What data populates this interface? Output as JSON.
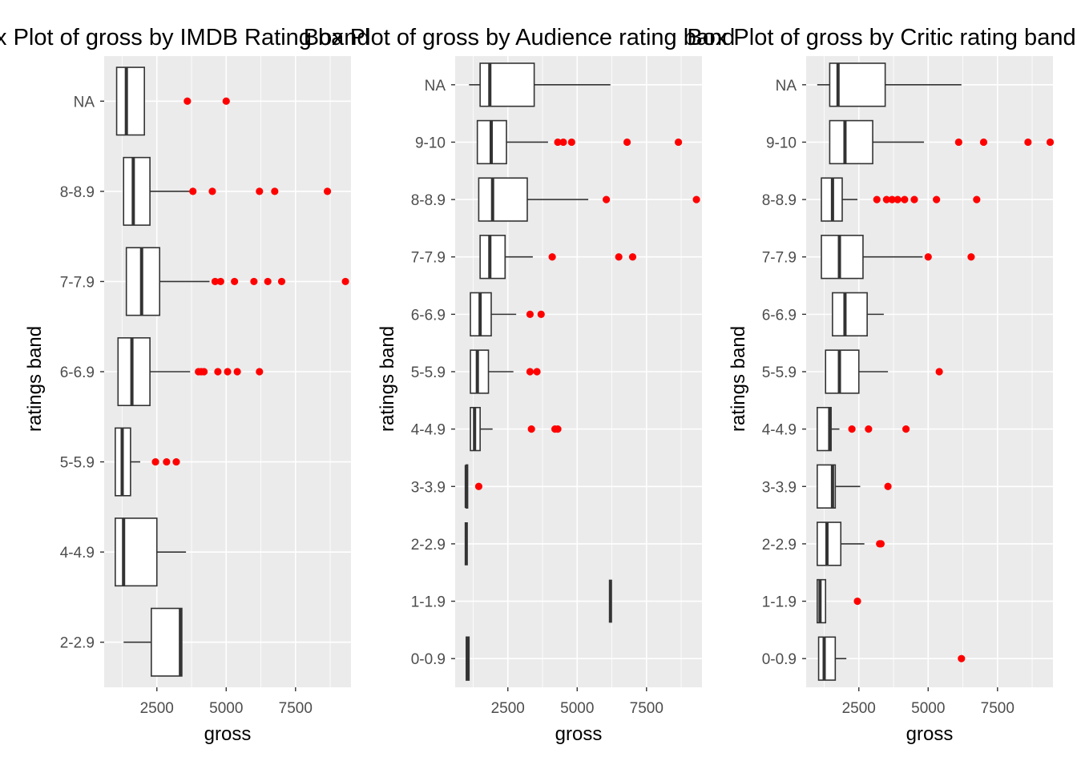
{
  "chart_data": [
    {
      "type": "boxplot",
      "orientation": "horizontal",
      "title": "Box Plot of gross by IMDB Rating band",
      "xlabel": "gross",
      "ylabel": "ratings band",
      "xlim": [
        600,
        9500
      ],
      "xticks": [
        2500,
        5000,
        7500
      ],
      "grid": true,
      "categories": [
        "2-2.9",
        "4-4.9",
        "5-5.9",
        "6-6.9",
        "7-7.9",
        "8-8.9",
        "NA"
      ],
      "boxes": [
        {
          "category": "2-2.9",
          "whisker_low": 1300,
          "q1": 2300,
          "median": 3350,
          "q3": 3400,
          "whisker_high": 3400,
          "outliers": []
        },
        {
          "category": "4-4.9",
          "whisker_low": 1000,
          "q1": 1000,
          "median": 1300,
          "q3": 2500,
          "whisker_high": 3550,
          "outliers": []
        },
        {
          "category": "5-5.9",
          "whisker_low": 1000,
          "q1": 1000,
          "median": 1250,
          "q3": 1550,
          "whisker_high": 1900,
          "outliers": [
            2450,
            2850,
            3200
          ]
        },
        {
          "category": "6-6.9",
          "whisker_low": 1100,
          "q1": 1100,
          "median": 1600,
          "q3": 2250,
          "whisker_high": 3700,
          "outliers": [
            4000,
            4100,
            4200,
            4700,
            5050,
            5400,
            6200
          ]
        },
        {
          "category": "7-7.9",
          "whisker_low": 1400,
          "q1": 1400,
          "median": 1950,
          "q3": 2600,
          "whisker_high": 4400,
          "outliers": [
            4600,
            4800,
            5300,
            6000,
            6500,
            7000,
            9300
          ]
        },
        {
          "category": "8-8.9",
          "whisker_low": 1300,
          "q1": 1300,
          "median": 1650,
          "q3": 2250,
          "whisker_high": 3700,
          "outliers": [
            3800,
            4500,
            6200,
            6750,
            8650
          ]
        },
        {
          "category": "NA",
          "whisker_low": 1050,
          "q1": 1050,
          "median": 1400,
          "q3": 2050,
          "whisker_high": 2050,
          "outliers": [
            3600,
            5000
          ]
        }
      ]
    },
    {
      "type": "boxplot",
      "orientation": "horizontal",
      "title": "Box Plot of gross by Audience rating band",
      "xlabel": "gross",
      "ylabel": "ratings band",
      "xlim": [
        600,
        9500
      ],
      "xticks": [
        2500,
        5000,
        7500
      ],
      "grid": true,
      "categories": [
        "0-0.9",
        "1-1.9",
        "2-2.9",
        "3-3.9",
        "4-4.9",
        "5-5.9",
        "6-6.9",
        "7-7.9",
        "8-8.9",
        "9-10",
        "NA"
      ],
      "boxes": [
        {
          "category": "0-0.9",
          "whisker_low": 1000,
          "q1": 1000,
          "median": 1050,
          "q3": 1100,
          "whisker_high": 1100,
          "outliers": []
        },
        {
          "category": "1-1.9",
          "whisker_low": 6200,
          "q1": 6200,
          "median": 6200,
          "q3": 6200,
          "whisker_high": 6200,
          "outliers": []
        },
        {
          "category": "2-2.9",
          "whisker_low": 1000,
          "q1": 1000,
          "median": 1000,
          "q3": 1000,
          "whisker_high": 1000,
          "outliers": []
        },
        {
          "category": "3-3.9",
          "whisker_low": 1000,
          "q1": 1000,
          "median": 1000,
          "q3": 1050,
          "whisker_high": 1050,
          "outliers": [
            1450
          ]
        },
        {
          "category": "4-4.9",
          "whisker_low": 1150,
          "q1": 1150,
          "median": 1300,
          "q3": 1500,
          "whisker_high": 1950,
          "outliers": [
            3350,
            4200,
            4300
          ]
        },
        {
          "category": "5-5.9",
          "whisker_low": 1150,
          "q1": 1150,
          "median": 1400,
          "q3": 1800,
          "whisker_high": 2700,
          "outliers": [
            3300,
            3550
          ]
        },
        {
          "category": "6-6.9",
          "whisker_low": 1150,
          "q1": 1150,
          "median": 1500,
          "q3": 1900,
          "whisker_high": 2800,
          "outliers": [
            3300,
            3700
          ]
        },
        {
          "category": "7-7.9",
          "whisker_low": 1500,
          "q1": 1500,
          "median": 1850,
          "q3": 2400,
          "whisker_high": 3400,
          "outliers": [
            4100,
            6500,
            7000
          ]
        },
        {
          "category": "8-8.9",
          "whisker_low": 1450,
          "q1": 1450,
          "median": 1950,
          "q3": 3200,
          "whisker_high": 5400,
          "outliers": [
            6050,
            9300
          ]
        },
        {
          "category": "9-10",
          "whisker_low": 1400,
          "q1": 1400,
          "median": 1900,
          "q3": 2450,
          "whisker_high": 3950,
          "outliers": [
            4300,
            4500,
            4800,
            6800,
            8650
          ]
        },
        {
          "category": "NA",
          "whisker_low": 1100,
          "q1": 1500,
          "median": 1850,
          "q3": 3450,
          "whisker_high": 6200,
          "outliers": []
        }
      ]
    },
    {
      "type": "boxplot",
      "orientation": "horizontal",
      "title": "Box Plot of gross by Critic rating band",
      "xlabel": "gross",
      "ylabel": "ratings band",
      "xlim": [
        600,
        9500
      ],
      "xticks": [
        2500,
        5000,
        7500
      ],
      "grid": true,
      "categories": [
        "0-0.9",
        "1-1.9",
        "2-2.9",
        "3-3.9",
        "4-4.9",
        "5-5.9",
        "6-6.9",
        "7-7.9",
        "8-8.9",
        "9-10",
        "NA"
      ],
      "boxes": [
        {
          "category": "0-0.9",
          "whisker_low": 1050,
          "q1": 1050,
          "median": 1250,
          "q3": 1650,
          "whisker_high": 2050,
          "outliers": [
            6200
          ]
        },
        {
          "category": "1-1.9",
          "whisker_low": 1000,
          "q1": 1000,
          "median": 1100,
          "q3": 1300,
          "whisker_high": 1300,
          "outliers": [
            2450
          ]
        },
        {
          "category": "2-2.9",
          "whisker_low": 1000,
          "q1": 1000,
          "median": 1350,
          "q3": 1850,
          "whisker_high": 2700,
          "outliers": [
            3250,
            3300
          ]
        },
        {
          "category": "3-3.9",
          "whisker_low": 1000,
          "q1": 1000,
          "median": 1550,
          "q3": 1650,
          "whisker_high": 2550,
          "outliers": [
            3550
          ]
        },
        {
          "category": "4-4.9",
          "whisker_low": 1000,
          "q1": 1000,
          "median": 1450,
          "q3": 1500,
          "whisker_high": 1800,
          "outliers": [
            2250,
            2850,
            4200
          ]
        },
        {
          "category": "5-5.9",
          "whisker_low": 1300,
          "q1": 1300,
          "median": 1800,
          "q3": 2500,
          "whisker_high": 3550,
          "outliers": [
            5400
          ]
        },
        {
          "category": "6-6.9",
          "whisker_low": 1550,
          "q1": 1550,
          "median": 2000,
          "q3": 2800,
          "whisker_high": 3400,
          "outliers": []
        },
        {
          "category": "7-7.9",
          "whisker_low": 1150,
          "q1": 1150,
          "median": 1800,
          "q3": 2650,
          "whisker_high": 4800,
          "outliers": [
            5000,
            6550
          ]
        },
        {
          "category": "8-8.9",
          "whisker_low": 1150,
          "q1": 1150,
          "median": 1550,
          "q3": 1900,
          "whisker_high": 2450,
          "outliers": [
            3150,
            3500,
            3700,
            3900,
            4150,
            4500,
            5300,
            6750
          ]
        },
        {
          "category": "9-10",
          "whisker_low": 1450,
          "q1": 1450,
          "median": 2000,
          "q3": 3000,
          "whisker_high": 4850,
          "outliers": [
            6100,
            7000,
            8600,
            9400
          ]
        },
        {
          "category": "NA",
          "whisker_low": 1000,
          "q1": 1450,
          "median": 1750,
          "q3": 3450,
          "whisker_high": 6200,
          "outliers": []
        }
      ]
    }
  ],
  "colors": {
    "panel_background": "#ebebeb",
    "grid": "#ffffff",
    "box_fill": "#ffffff",
    "box_line": "#333333",
    "outlier": "#ff0000",
    "tick_text": "#4d4d4d",
    "tick_mark": "#333333"
  }
}
